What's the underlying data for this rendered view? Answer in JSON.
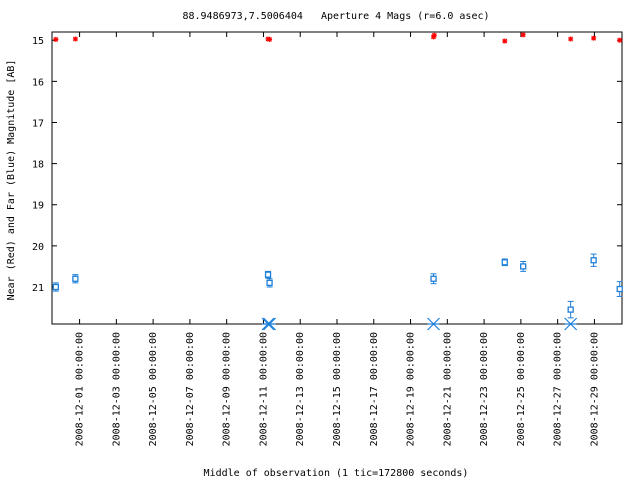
{
  "chart_data": {
    "type": "scatter",
    "title": "88.9486973,7.5006404   Aperture 4 Mags (r=6.0 asec)",
    "xlabel": "Middle of observation (1 tic=172800 seconds)",
    "ylabel": "Near (Red) and Far (Blue) Magnitude [AB]",
    "x_range": [
      "2008-11-29T12:00:00",
      "2008-12-30T12:00:00"
    ],
    "y_range": [
      21.9,
      14.8
    ],
    "y_inverted": true,
    "y_ticks": [
      "15",
      "16",
      "17",
      "18",
      "19",
      "20",
      "21"
    ],
    "x_ticks": [
      "2008-12-01 00:00:00",
      "2008-12-03 00:00:00",
      "2008-12-05 00:00:00",
      "2008-12-07 00:00:00",
      "2008-12-09 00:00:00",
      "2008-12-11 00:00:00",
      "2008-12-13 00:00:00",
      "2008-12-15 00:00:00",
      "2008-12-17 00:00:00",
      "2008-12-19 00:00:00",
      "2008-12-21 00:00:00",
      "2008-12-23 00:00:00",
      "2008-12-25 00:00:00",
      "2008-12-27 00:00:00",
      "2008-12-29 00:00:00"
    ],
    "colors": {
      "near": "#ff0000",
      "far": "#1e7fd8"
    },
    "series": [
      {
        "color": "near",
        "marker": "star",
        "points": [
          {
            "x": "2008-11-29T17:00:00",
            "y": 14.98
          },
          {
            "x": "2008-11-30T18:30:00",
            "y": 14.97
          },
          {
            "x": "2008-12-11T06:00:00",
            "y": 14.97
          },
          {
            "x": "2008-12-11T08:00:00",
            "y": 14.98
          },
          {
            "x": "2008-12-20T06:00:00",
            "y": 14.92
          },
          {
            "x": "2008-12-20T07:00:00",
            "y": 14.88
          },
          {
            "x": "2008-12-24T03:00:00",
            "y": 15.02
          },
          {
            "x": "2008-12-25T03:00:00",
            "y": 14.87
          },
          {
            "x": "2008-12-27T17:00:00",
            "y": 14.97
          },
          {
            "x": "2008-12-28T23:00:00",
            "y": 14.95
          },
          {
            "x": "2008-12-30T09:00:00",
            "y": 15.0
          }
        ]
      },
      {
        "color": "far",
        "marker": "square",
        "points": [
          {
            "x": "2008-11-29T17:00:00",
            "y": 21.0,
            "err": 0.1
          },
          {
            "x": "2008-11-30T18:30:00",
            "y": 20.8,
            "err": 0.1
          },
          {
            "x": "2008-12-11T06:00:00",
            "y": 20.7,
            "err": 0.08
          },
          {
            "x": "2008-12-11T08:00:00",
            "y": 20.9,
            "err": 0.1
          },
          {
            "x": "2008-12-20T06:00:00",
            "y": 20.8,
            "err": 0.12
          },
          {
            "x": "2008-12-24T03:00:00",
            "y": 20.4,
            "err": 0.08
          },
          {
            "x": "2008-12-25T03:00:00",
            "y": 20.5,
            "err": 0.12
          },
          {
            "x": "2008-12-27T17:00:00",
            "y": 21.55,
            "err": 0.2
          },
          {
            "x": "2008-12-28T23:00:00",
            "y": 20.35,
            "err": 0.15
          },
          {
            "x": "2008-12-30T09:00:00",
            "y": 21.05,
            "err": 0.18
          }
        ]
      },
      {
        "color": "far",
        "marker": "asterisk",
        "note": "upper limits at bottom of plot",
        "points": [
          {
            "x": "2008-12-11T06:00:00",
            "y": 21.9
          },
          {
            "x": "2008-12-11T08:00:00",
            "y": 21.9
          },
          {
            "x": "2008-12-20T06:00:00",
            "y": 21.9
          },
          {
            "x": "2008-12-27T17:00:00",
            "y": 21.9
          }
        ]
      }
    ]
  }
}
